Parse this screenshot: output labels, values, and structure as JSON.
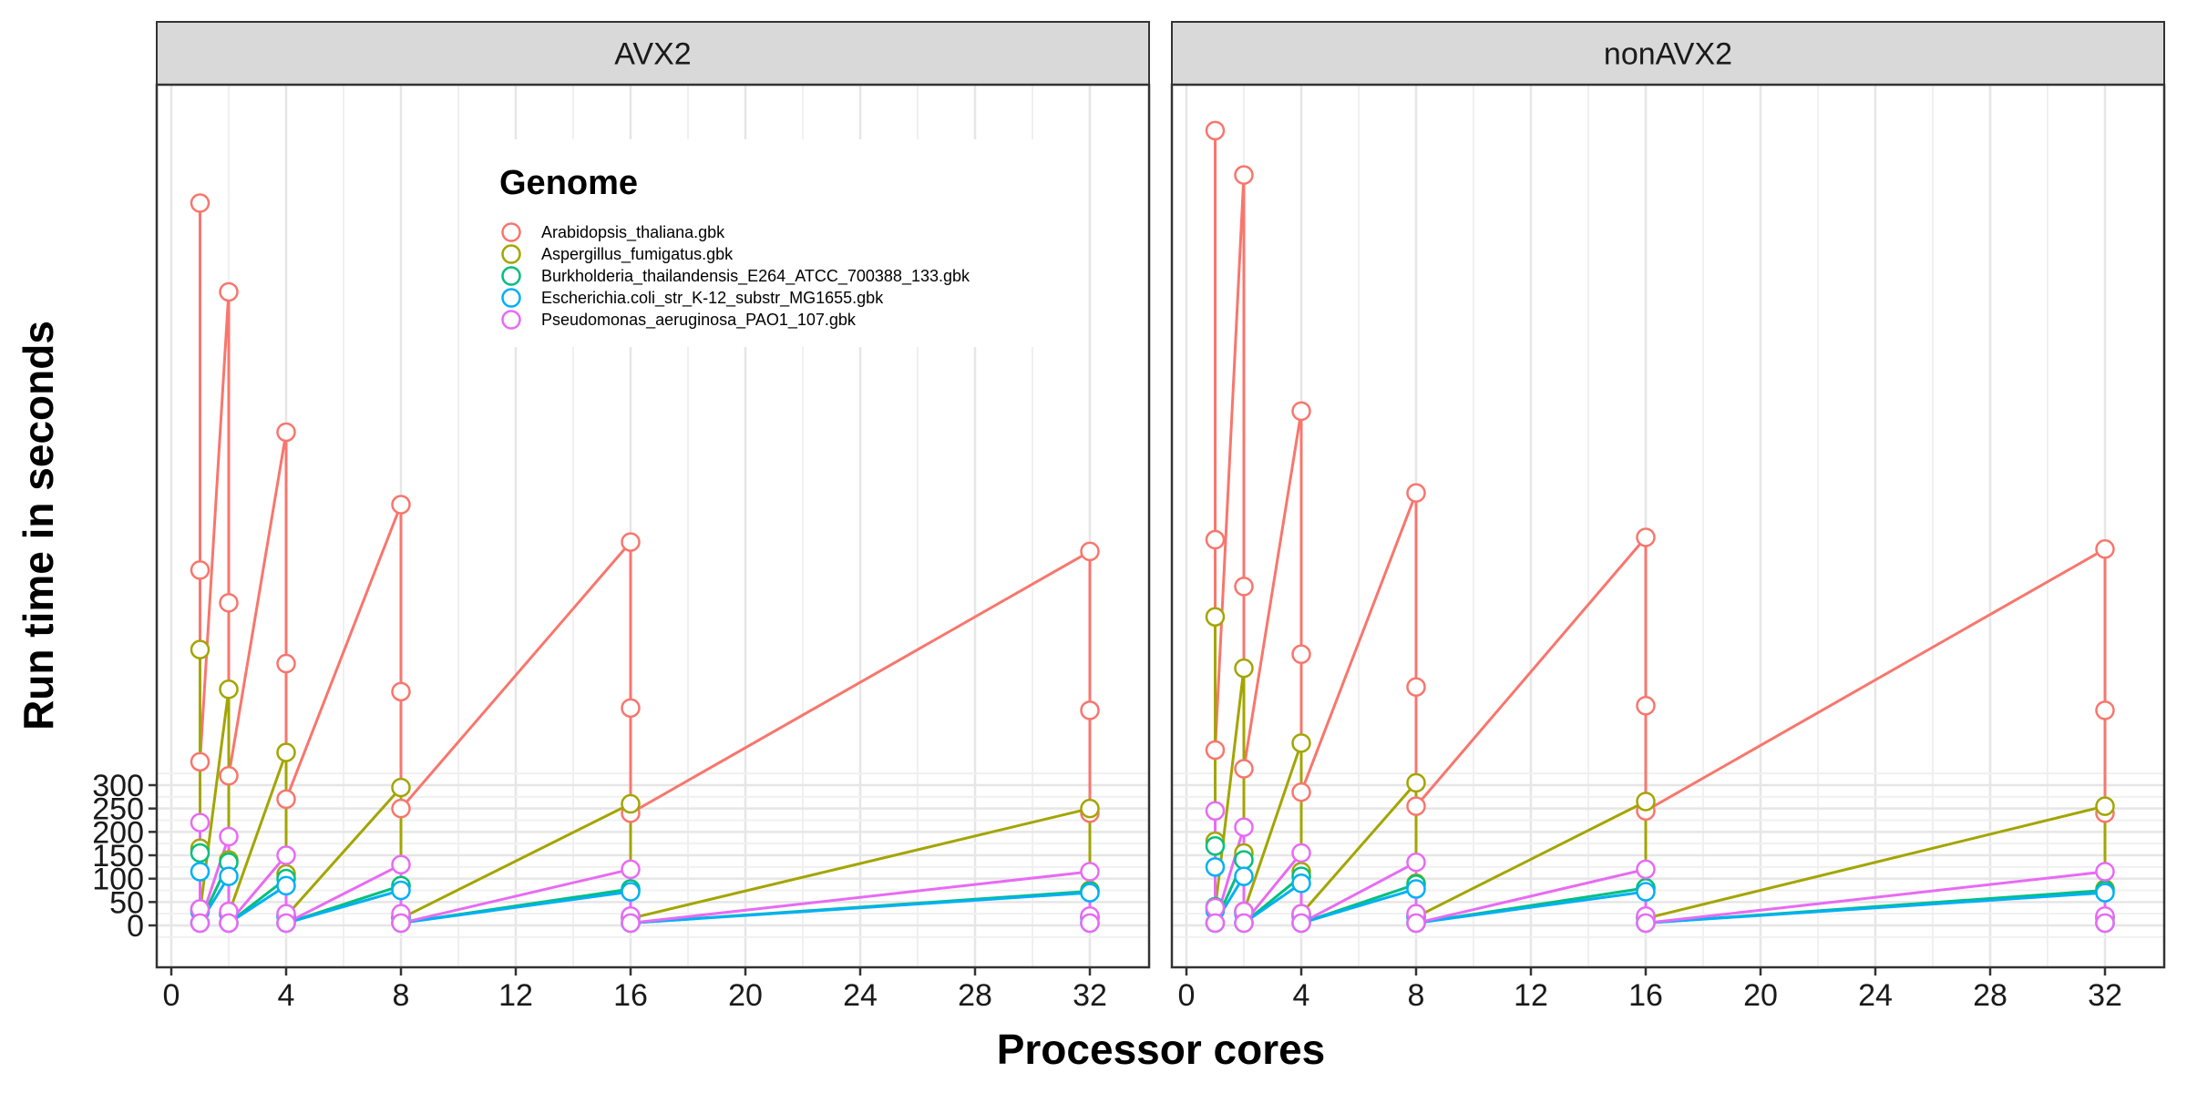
{
  "colors": {
    "Arabidopsis_thaliana.gbk": "#F8766D",
    "Aspergillus_fumigatus.gbk": "#A3A500",
    "Burkholderia_thailandensis_E264_ATCC_700388_133.gbk": "#00BF7D",
    "Escherichia.coli_str_K-12_substr_MG1655.gbk": "#00B0F6",
    "Pseudomonas_aeruginosa_PAO1_107.gbk": "#E76BF3"
  },
  "chart_data": {
    "type": "line",
    "facets": [
      "AVX2",
      "nonAVX2"
    ],
    "xlabel": "Processor cores",
    "ylabel": "Run time in seconds",
    "x_ticks": [
      0,
      4,
      8,
      12,
      16,
      20,
      24,
      28,
      32
    ],
    "y_ticks": [
      0,
      50,
      100,
      150,
      200,
      250,
      300
    ],
    "xlim": [
      0,
      33
    ],
    "ylim": [
      -60,
      1900
    ],
    "grid": true,
    "legend": {
      "title": "Genome",
      "placement": "top-center",
      "entries": [
        "Arabidopsis_thaliana.gbk",
        "Aspergillus_fumigatus.gbk",
        "Burkholderia_thailandensis_E264_ATCC_700388_133.gbk",
        "Escherichia.coli_str_K-12_substr_MG1655.gbk",
        "Pseudomonas_aeruginosa_PAO1_107.gbk"
      ]
    },
    "panels": [
      {
        "facet": "AVX2",
        "series": [
          {
            "name": "Arabidopsis_thaliana.gbk",
            "x": [
              1,
              1,
              1,
              2,
              2,
              2,
              4,
              4,
              4,
              8,
              8,
              8,
              16,
              16,
              16,
              32,
              32,
              32
            ],
            "y": [
              1545,
              760,
              350,
              1355,
              690,
              320,
              1055,
              560,
              270,
              900,
              500,
              250,
              820,
              465,
              240,
              800,
              460,
              240
            ]
          },
          {
            "name": "Aspergillus_fumigatus.gbk",
            "x": [
              1,
              1,
              1,
              2,
              2,
              2,
              4,
              4,
              4,
              8,
              8,
              8,
              16,
              16,
              16,
              32,
              32,
              32
            ],
            "y": [
              590,
              165,
              30,
              505,
              140,
              25,
              370,
              110,
              20,
              295,
              85,
              15,
              260,
              75,
              15,
              250,
              75,
              15
            ]
          },
          {
            "name": "Burkholderia_thailandensis_E264_ATCC_700388_133.gbk",
            "x": [
              1,
              1,
              1,
              2,
              2,
              2,
              4,
              4,
              4,
              8,
              8,
              8,
              16,
              16,
              16,
              32,
              32,
              32
            ],
            "y": [
              155,
              35,
              5,
              135,
              25,
              5,
              100,
              20,
              5,
              85,
              18,
              5,
              78,
              18,
              5,
              73,
              18,
              5
            ]
          },
          {
            "name": "Escherichia.coli_str_K-12_substr_MG1655.gbk",
            "x": [
              1,
              1,
              1,
              2,
              2,
              2,
              4,
              4,
              4,
              8,
              8,
              8,
              16,
              16,
              16,
              32,
              32,
              32
            ],
            "y": [
              115,
              30,
              5,
              105,
              25,
              5,
              85,
              20,
              5,
              75,
              18,
              5,
              72,
              18,
              5,
              70,
              18,
              5
            ]
          },
          {
            "name": "Pseudomonas_aeruginosa_PAO1_107.gbk",
            "x": [
              1,
              1,
              1,
              2,
              2,
              2,
              4,
              4,
              4,
              8,
              8,
              8,
              16,
              16,
              16,
              32,
              32,
              32
            ],
            "y": [
              220,
              35,
              5,
              190,
              30,
              5,
              150,
              25,
              5,
              130,
              25,
              5,
              120,
              20,
              5,
              115,
              20,
              5
            ]
          }
        ]
      },
      {
        "facet": "nonAVX2",
        "series": [
          {
            "name": "Arabidopsis_thaliana.gbk",
            "x": [
              1,
              1,
              1,
              2,
              2,
              2,
              4,
              4,
              4,
              8,
              8,
              8,
              16,
              16,
              16,
              32,
              32,
              32
            ],
            "y": [
              1700,
              825,
              375,
              1605,
              725,
              335,
              1100,
              580,
              285,
              925,
              510,
              255,
              830,
              470,
              245,
              805,
              460,
              240
            ]
          },
          {
            "name": "Aspergillus_fumigatus.gbk",
            "x": [
              1,
              1,
              1,
              2,
              2,
              2,
              4,
              4,
              4,
              8,
              8,
              8,
              16,
              16,
              16,
              32,
              32,
              32
            ],
            "y": [
              660,
              180,
              35,
              550,
              155,
              30,
              390,
              115,
              25,
              305,
              90,
              18,
              265,
              80,
              15,
              255,
              78,
              15
            ]
          },
          {
            "name": "Burkholderia_thailandensis_E264_ATCC_700388_133.gbk",
            "x": [
              1,
              1,
              1,
              2,
              2,
              2,
              4,
              4,
              4,
              8,
              8,
              8,
              16,
              16,
              16,
              32,
              32,
              32
            ],
            "y": [
              170,
              40,
              5,
              140,
              28,
              5,
              105,
              22,
              5,
              88,
              20,
              5,
              80,
              18,
              5,
              75,
              18,
              5
            ]
          },
          {
            "name": "Escherichia.coli_str_K-12_substr_MG1655.gbk",
            "x": [
              1,
              1,
              1,
              2,
              2,
              2,
              4,
              4,
              4,
              8,
              8,
              8,
              16,
              16,
              16,
              32,
              32,
              32
            ],
            "y": [
              125,
              32,
              5,
              105,
              25,
              5,
              90,
              20,
              5,
              78,
              18,
              5,
              72,
              18,
              5,
              70,
              18,
              5
            ]
          },
          {
            "name": "Pseudomonas_aeruginosa_PAO1_107.gbk",
            "x": [
              1,
              1,
              1,
              2,
              2,
              2,
              4,
              4,
              4,
              8,
              8,
              8,
              16,
              16,
              16,
              32,
              32,
              32
            ],
            "y": [
              245,
              38,
              5,
              210,
              30,
              5,
              155,
              25,
              5,
              135,
              25,
              5,
              120,
              20,
              5,
              115,
              20,
              5
            ]
          }
        ]
      }
    ]
  }
}
